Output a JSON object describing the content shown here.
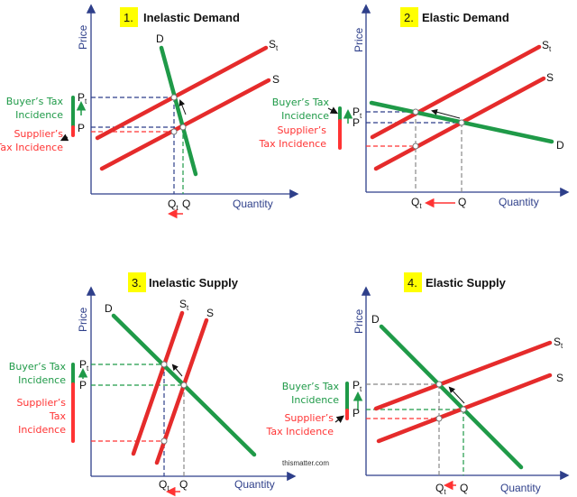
{
  "panels": [
    {
      "number": "1.",
      "title": "Inelastic Demand",
      "y_axis": "Price",
      "x_axis": "Quantity",
      "demand": "D",
      "supply": "S",
      "supply_tax": {
        "base": "S",
        "sub": "t"
      },
      "price": "P",
      "price_tax": {
        "base": "P",
        "sub": "t"
      },
      "qty": "Q",
      "qty_tax": {
        "base": "Q",
        "sub": "t"
      },
      "buyer_incidence": [
        "Buyer’s Tax",
        "Incidence"
      ],
      "supplier_incidence": [
        "Supplier’s",
        "Tax Incidence"
      ]
    },
    {
      "number": "2.",
      "title": "Elastic Demand",
      "y_axis": "Price",
      "x_axis": "Quantity",
      "demand": "D",
      "supply": "S",
      "supply_tax": {
        "base": "S",
        "sub": "t"
      },
      "price": "P",
      "price_tax": {
        "base": "P",
        "sub": "t"
      },
      "qty": "Q",
      "qty_tax": {
        "base": "Q",
        "sub": "t"
      },
      "buyer_incidence": [
        "Buyer’s Tax",
        "Incidence"
      ],
      "supplier_incidence": [
        "Supplier’s",
        "Tax Incidence"
      ]
    },
    {
      "number": "3.",
      "title": "Inelastic Supply",
      "y_axis": "Price",
      "x_axis": "Quantity",
      "demand": "D",
      "supply": "S",
      "supply_tax": {
        "base": "S",
        "sub": "t"
      },
      "price": "P",
      "price_tax": {
        "base": "P",
        "sub": "t"
      },
      "qty": "Q",
      "qty_tax": {
        "base": "Q",
        "sub": "t"
      },
      "buyer_incidence": [
        "Buyer’s Tax",
        "Incidence"
      ],
      "supplier_incidence": [
        "Supplier’s",
        "Tax",
        "Incidence"
      ]
    },
    {
      "number": "4.",
      "title": "Elastic Supply",
      "y_axis": "Price",
      "x_axis": "Quantity",
      "demand": "D",
      "supply": "S",
      "supply_tax": {
        "base": "S",
        "sub": "t"
      },
      "price": "P",
      "price_tax": {
        "base": "P",
        "sub": "t"
      },
      "qty": "Q",
      "qty_tax": {
        "base": "Q",
        "sub": "t"
      },
      "buyer_incidence": [
        "Buyer’s Tax",
        "Incidence"
      ],
      "supplier_incidence": [
        "Supplier’s",
        "Tax Incidence"
      ]
    }
  ],
  "watermark": "thismatter.com",
  "colors": {
    "supply": "#e52b2b",
    "demand": "#1f9a48",
    "axis": "#2e3f8a",
    "buyer": "#1f9a48",
    "supplier": "#ff3333",
    "title_box": "#ffff00"
  }
}
